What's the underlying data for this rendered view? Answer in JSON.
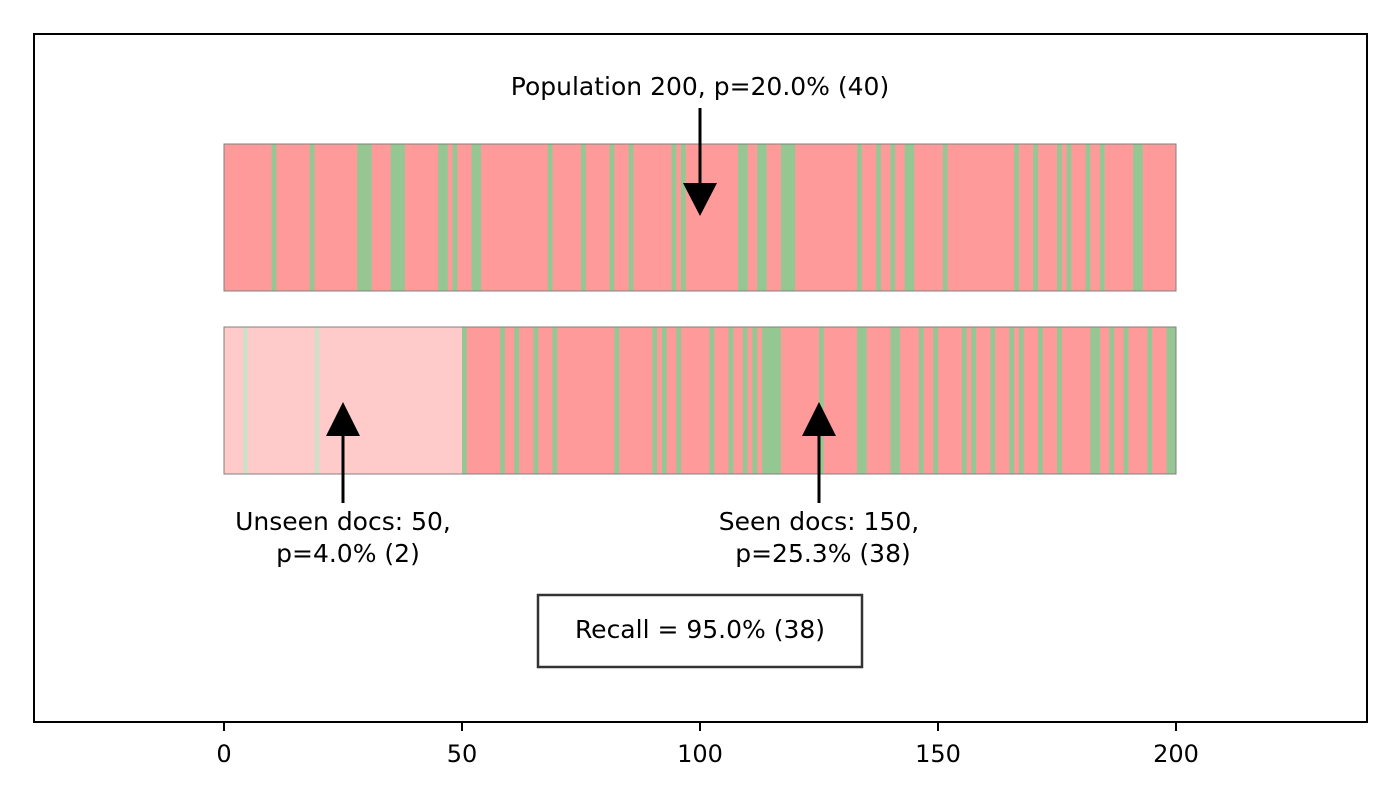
{
  "chart_data": {
    "type": "bar",
    "xlim": [
      -40,
      240
    ],
    "x_ticks": [
      0,
      50,
      100,
      150,
      200
    ],
    "x_tick_labels": [
      "0",
      "50",
      "100",
      "150",
      "200"
    ],
    "colors": {
      "positive": "#93c893",
      "negative": "#ff9a9a",
      "positive_unseen": "#cfe0c8",
      "negative_unseen": "#ffcaca",
      "bar_outline": "#808080",
      "recall_box_border": "#333333"
    },
    "population": {
      "total": 200,
      "prevalence_percent": 20.0,
      "positives": 40,
      "positive_indices": [
        10,
        18,
        28,
        29,
        30,
        35,
        36,
        37,
        45,
        46,
        48,
        52,
        53,
        68,
        75,
        81,
        85,
        94,
        96,
        108,
        109,
        112,
        113,
        117,
        118,
        119,
        133,
        137,
        140,
        143,
        144,
        151,
        166,
        170,
        175,
        177,
        181,
        184,
        191,
        192
      ]
    },
    "split": {
      "unseen_count": 50,
      "seen_count": 150,
      "unseen_positive_indices": [
        4,
        19
      ],
      "seen_positive_indices": [
        50,
        58,
        61,
        65,
        69,
        82,
        90,
        92,
        95,
        102,
        106,
        109,
        111,
        113,
        114,
        115,
        116,
        125,
        133,
        134,
        140,
        141,
        146,
        149,
        155,
        157,
        161,
        165,
        167,
        171,
        175,
        182,
        183,
        186,
        189,
        194,
        198,
        199
      ]
    },
    "annotations": {
      "population": "Population 200, p=20.0% (40)",
      "unseen": [
        "Unseen docs: 50,",
        "p=4.0% (2)"
      ],
      "seen": [
        "Seen docs: 150,",
        "p=25.3% (38)"
      ],
      "recall": "Recall = 95.0% (38)"
    }
  }
}
